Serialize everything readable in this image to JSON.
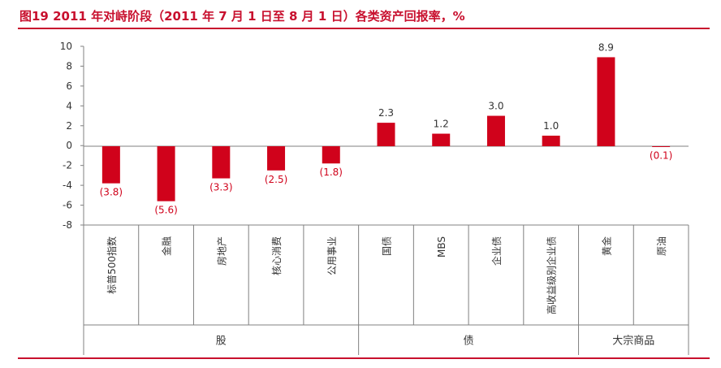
{
  "title": "图19  2011 年对峙阶段（2011 年 7 月 1 日至 8 月 1 日）各类资产回报率，%",
  "colors": {
    "bar": "#d0021b",
    "title": "#c8102e",
    "negative_label": "#d0021b",
    "positive_label": "#333333",
    "axis": "#808080"
  },
  "chart_data": {
    "type": "bar",
    "title": "图19  2011 年对峙阶段（2011 年 7 月 1 日至 8 月 1 日）各类资产回报率，%",
    "ylim": [
      -8,
      10
    ],
    "yticks": [
      "10",
      "8",
      "6",
      "4",
      "2",
      "0",
      "-2",
      "-4",
      "-6",
      "-8"
    ],
    "ytick_values": [
      10,
      8,
      6,
      4,
      2,
      0,
      -2,
      -4,
      -6,
      -8
    ],
    "categories": [
      "标普500指数",
      "金融",
      "房地产",
      "核心消费",
      "公用事业",
      "国债",
      "MBS",
      "企业债",
      "高收益级别企业债",
      "黄金",
      "原油"
    ],
    "values": [
      -3.8,
      -5.6,
      -3.3,
      -2.5,
      -1.8,
      2.3,
      1.2,
      3.0,
      1.0,
      8.9,
      -0.1
    ],
    "data_labels": [
      "(3.8)",
      "(5.6)",
      "(3.3)",
      "(2.5)",
      "(1.8)",
      "2.3",
      "1.2",
      "3.0",
      "1.0",
      "8.9",
      "(0.1)"
    ],
    "groups": [
      {
        "name": "股",
        "start": 0,
        "end": 4
      },
      {
        "name": "债",
        "start": 5,
        "end": 8
      },
      {
        "name": "大宗商品",
        "start": 9,
        "end": 10
      }
    ],
    "grid": false,
    "legend": "none"
  }
}
